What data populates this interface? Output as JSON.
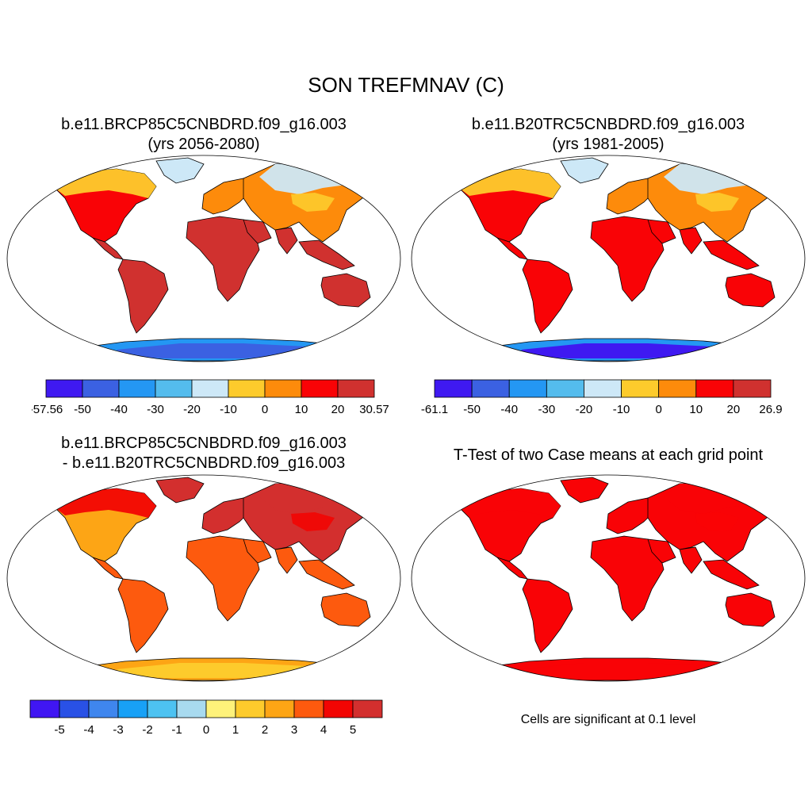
{
  "title": "SON TREFMNAV (C)",
  "panels": [
    {
      "id": "case1",
      "title_line1": "b.e11.BRCP85C5CNBDRD.f09_g16.003",
      "title_line2": "(yrs 2056-2080)",
      "colorbar": {
        "colors": [
          "#3f19f1",
          "#3b61e2",
          "#2497f3",
          "#54bced",
          "#cde8f7",
          "#fdcb2c",
          "#fd8b0b",
          "#f90306",
          "#d0312f"
        ],
        "labels": [
          "-57.56",
          "-50",
          "-40",
          "-30",
          "-20",
          "-10",
          "0",
          "10",
          "20",
          "30.57"
        ]
      }
    },
    {
      "id": "case2",
      "title_line1": "b.e11.B20TRC5CNBDRD.f09_g16.003",
      "title_line2": "(yrs 1981-2005)",
      "colorbar": {
        "colors": [
          "#3f19f1",
          "#3b61e2",
          "#2497f3",
          "#54bced",
          "#cde8f7",
          "#fdcb2c",
          "#fd8b0b",
          "#f90306",
          "#d0312f"
        ],
        "labels": [
          "-61.1",
          "-50",
          "-40",
          "-30",
          "-20",
          "-10",
          "0",
          "10",
          "20",
          "26.9"
        ]
      }
    },
    {
      "id": "diff",
      "title_line1": "b.e11.BRCP85C5CNBDRD.f09_g16.003",
      "title_line2": "- b.e11.B20TRC5CNBDRD.f09_g16.003",
      "colorbar": {
        "colors": [
          "#4016f3",
          "#2951e6",
          "#3f86ee",
          "#18a1f6",
          "#4dc2f1",
          "#a8daef",
          "#fef27a",
          "#fdcb2c",
          "#fda515",
          "#fd5a0e",
          "#f20503",
          "#d32f2e"
        ],
        "labels": [
          "-5",
          "-4",
          "-3",
          "-2",
          "-1",
          "0",
          "1",
          "2",
          "3",
          "4",
          "5"
        ]
      }
    },
    {
      "id": "ttest",
      "title_line1": "T-Test of two Case means at each grid point",
      "note": "Cells are significant at 0.1 level"
    }
  ],
  "map_colors": {
    "case1": {
      "land": "#d0312f",
      "mid": "#f90306",
      "north": "#fd8b0b",
      "cold": "#fdcb2c",
      "ice": "#cde8f7",
      "antarctica": "#2497f3",
      "antarctica_deep": "#3b61e2"
    },
    "case2": {
      "land": "#f90306",
      "mid": "#f90306",
      "north": "#fd8b0b",
      "cold": "#fdcb2c",
      "ice": "#cde8f7",
      "antarctica": "#2497f3",
      "antarctica_deep": "#3f19f1"
    },
    "diff": {
      "land": "#fd5a0e",
      "mid": "#fda515",
      "north": "#d32f2e",
      "cold": "#f20503",
      "ice": "#d32f2e",
      "antarctica": "#fda515",
      "antarctica_deep": "#fdcb2c"
    },
    "ttest": {
      "land": "#f90306",
      "mid": "#f90306",
      "north": "#f90306",
      "cold": "#f90306",
      "ice": "#f90306",
      "antarctica": "#f90306",
      "antarctica_deep": "#f90306"
    }
  }
}
